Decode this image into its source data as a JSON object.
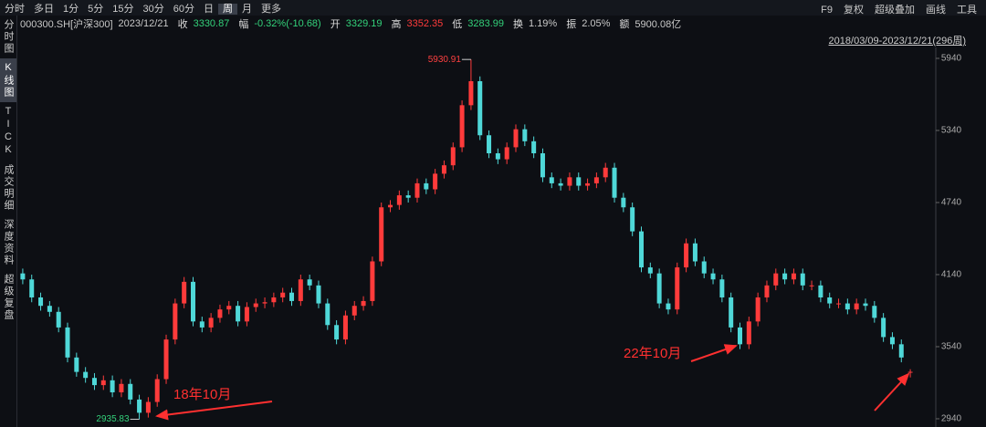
{
  "toolbar": {
    "periods": [
      "分时",
      "多日",
      "1分",
      "5分",
      "15分",
      "30分",
      "60分",
      "日",
      "周",
      "月",
      "更多"
    ],
    "active_period": "周",
    "tools": [
      "F9",
      "复权",
      "超级叠加",
      "画线",
      "工具"
    ]
  },
  "info": {
    "code": "000300.SH[沪深300]",
    "date": "2023/12/21",
    "close_label": "收",
    "change_label": "幅",
    "change": "-0.32%(-10.68)",
    "open_label": "开",
    "high_label": "高",
    "low_label": "低",
    "turnover_label": "换",
    "turnover": "1.19%",
    "amplitude_label": "振",
    "amplitude": "2.05%",
    "amount_label": "额",
    "amount": "5900.08亿"
  },
  "sidebar": [
    "分时图",
    "K线图",
    "TICK",
    "成交明细",
    "深度资料",
    "超级复盘"
  ],
  "active_tab": "K线图",
  "range": "2018/03/09-2023/12/21(296周)",
  "chart_data": {
    "type": "candlestick",
    "up_color": "#ff3b3b",
    "down_color": "#4fd8d8",
    "ylim": [
      2917,
      6031
    ],
    "yticks": [
      2940,
      3540,
      4140,
      4740,
      5340,
      5940
    ],
    "annotations": [
      "18年10月",
      "22年10月"
    ],
    "open": [
      4150,
      4100,
      3950,
      3880,
      3830,
      3700,
      3450,
      3330,
      3280,
      3220,
      3260,
      3160,
      3230,
      3100,
      2990,
      3080,
      3270,
      3600,
      3900,
      4080,
      3750,
      3700,
      3780,
      3850,
      3880,
      3750,
      3870,
      3900,
      3910,
      3950,
      3990,
      3920,
      4100,
      4050,
      3900,
      3720,
      3600,
      3800,
      3880,
      3920,
      4250,
      4700,
      4720,
      4800,
      4780,
      4900,
      4850,
      4980,
      5050,
      5200,
      5550,
      5750,
      5300,
      5150,
      5100,
      5200,
      5350,
      5250,
      5150,
      4950,
      4900,
      4880,
      4950,
      4880,
      4900,
      4950,
      5030,
      4780,
      4700,
      4500,
      4200,
      4150,
      3900,
      3850,
      4200,
      4400,
      4250,
      4150,
      4100,
      3950,
      3700,
      3560,
      3750,
      3950,
      4050,
      4150,
      4100,
      4150,
      4050,
      4050,
      3950,
      3900,
      3900,
      3850,
      3900,
      3880,
      3780,
      3620,
      3560,
      3329.19
    ],
    "high": [
      4190,
      4140,
      3990,
      3920,
      3870,
      3740,
      3490,
      3370,
      3320,
      3300,
      3300,
      3270,
      3270,
      3140,
      3120,
      3310,
      3640,
      3940,
      4120,
      4120,
      3790,
      3820,
      3890,
      3920,
      3920,
      3910,
      3940,
      3950,
      3990,
      4030,
      4030,
      4140,
      4140,
      4090,
      3940,
      3760,
      3840,
      3920,
      3960,
      4290,
      4740,
      4760,
      4840,
      4840,
      4940,
      4940,
      5020,
      5090,
      5240,
      5590,
      5930.91,
      5790,
      5340,
      5190,
      5240,
      5390,
      5390,
      5290,
      5190,
      4990,
      4940,
      4990,
      4990,
      4940,
      4990,
      5070,
      5070,
      4820,
      4740,
      4540,
      4240,
      4190,
      3940,
      4240,
      4440,
      4440,
      4290,
      4190,
      4140,
      3990,
      3740,
      3790,
      3990,
      4090,
      4190,
      4190,
      4190,
      4190,
      4090,
      4090,
      3990,
      3940,
      3940,
      3940,
      3940,
      3920,
      3820,
      3660,
      3600,
      3352.35
    ],
    "low": [
      4060,
      3910,
      3840,
      3790,
      3660,
      3410,
      3290,
      3240,
      3180,
      3180,
      3120,
      3120,
      3060,
      2935.83,
      2950,
      3040,
      3230,
      3560,
      3860,
      3710,
      3660,
      3660,
      3740,
      3810,
      3710,
      3710,
      3830,
      3860,
      3870,
      3910,
      3880,
      3880,
      4010,
      3860,
      3680,
      3560,
      3560,
      3760,
      3840,
      3880,
      4210,
      4660,
      4680,
      4740,
      4740,
      4810,
      4810,
      4940,
      5010,
      5160,
      5510,
      5260,
      5110,
      5060,
      5060,
      5160,
      5210,
      5110,
      4910,
      4860,
      4840,
      4840,
      4840,
      4840,
      4860,
      4910,
      4740,
      4660,
      4460,
      4160,
      4110,
      3860,
      3810,
      3810,
      4160,
      4210,
      4110,
      4060,
      3910,
      3660,
      3520,
      3520,
      3710,
      3910,
      4010,
      4060,
      4060,
      4010,
      4010,
      3910,
      3860,
      3860,
      3810,
      3810,
      3840,
      3740,
      3580,
      3520,
      3410,
      3283.99
    ],
    "close": [
      4100,
      3950,
      3880,
      3830,
      3700,
      3450,
      3330,
      3280,
      3220,
      3260,
      3160,
      3230,
      3100,
      2990,
      3080,
      3270,
      3600,
      3900,
      4080,
      3750,
      3700,
      3780,
      3850,
      3880,
      3750,
      3870,
      3900,
      3910,
      3950,
      3990,
      3920,
      4100,
      4050,
      3900,
      3720,
      3600,
      3800,
      3880,
      3920,
      4250,
      4700,
      4720,
      4800,
      4780,
      4900,
      4850,
      4980,
      5050,
      5200,
      5550,
      5750,
      5300,
      5150,
      5100,
      5200,
      5350,
      5250,
      5150,
      4950,
      4900,
      4880,
      4950,
      4880,
      4900,
      4950,
      5030,
      4780,
      4700,
      4500,
      4200,
      4150,
      3900,
      3850,
      4200,
      4400,
      4250,
      4150,
      4100,
      3950,
      3700,
      3560,
      3750,
      3950,
      4050,
      4150,
      4100,
      4150,
      4050,
      4050,
      3950,
      3900,
      3900,
      3850,
      3900,
      3880,
      3780,
      3620,
      3560,
      3450,
      3330.87
    ]
  }
}
